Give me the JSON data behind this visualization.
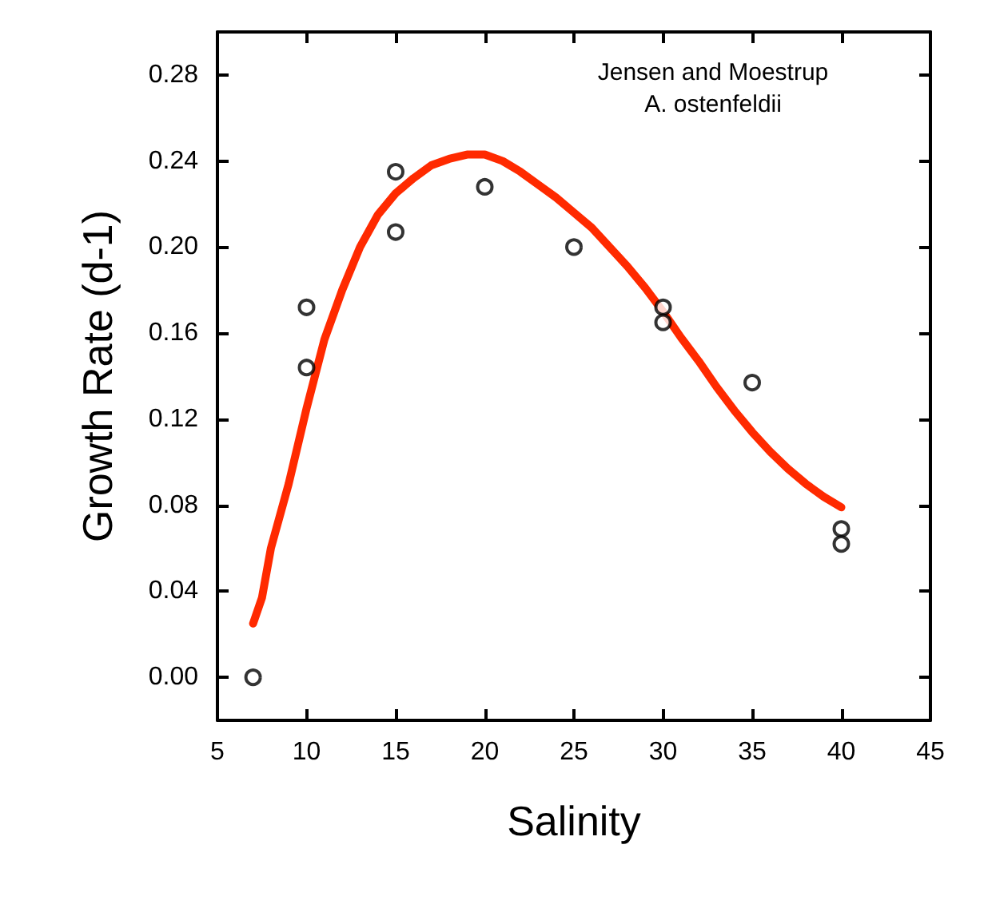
{
  "chart_data": {
    "type": "scatter",
    "xlabel": "Salinity",
    "ylabel": "Growth Rate (d-1)",
    "annotations": [
      "Jensen and Moestrup",
      "A. ostenfeldii"
    ],
    "xlim": [
      5,
      45
    ],
    "xticks": [
      5,
      10,
      15,
      20,
      25,
      30,
      35,
      40,
      45
    ],
    "ylim": [
      -0.02,
      0.3
    ],
    "yticks": [
      {
        "value": 0,
        "label": "0.00"
      },
      {
        "value": 0.04,
        "label": "0.04"
      },
      {
        "value": 0.08,
        "label": "0.08"
      },
      {
        "value": 0.12,
        "label": "0.12"
      },
      {
        "value": 0.16,
        "label": "0.16"
      },
      {
        "value": 0.2,
        "label": "0.20"
      },
      {
        "value": 0.24,
        "label": "0.24"
      },
      {
        "value": 0.28,
        "label": "0.28"
      }
    ],
    "grid": false,
    "series": [
      {
        "marker": "circle",
        "color": "#000000",
        "x": [
          7,
          10,
          10,
          15,
          15,
          20,
          25,
          30,
          30,
          35,
          40,
          40
        ],
        "values": [
          0.0,
          0.172,
          0.144,
          0.235,
          0.207,
          0.228,
          0.2,
          0.172,
          0.165,
          0.137,
          0.069,
          0.062
        ]
      },
      {
        "type": "line",
        "marker": "none",
        "line_style": "solid",
        "color": "#ff2a00",
        "x": [
          7,
          7.5,
          8,
          9,
          10,
          11,
          12,
          13,
          14,
          15,
          16,
          17,
          18,
          19,
          20,
          21,
          22,
          23,
          24,
          25,
          26,
          27,
          28,
          29,
          30,
          31,
          32,
          33,
          34,
          35,
          36,
          37,
          38,
          39,
          40
        ],
        "values": [
          0.025,
          0.037,
          0.06,
          0.09,
          0.125,
          0.157,
          0.18,
          0.2,
          0.215,
          0.225,
          0.232,
          0.238,
          0.241,
          0.243,
          0.243,
          0.24,
          0.235,
          0.229,
          0.223,
          0.216,
          0.209,
          0.2,
          0.191,
          0.181,
          0.17,
          0.158,
          0.147,
          0.135,
          0.124,
          0.114,
          0.105,
          0.097,
          0.09,
          0.084,
          0.079
        ]
      }
    ]
  }
}
